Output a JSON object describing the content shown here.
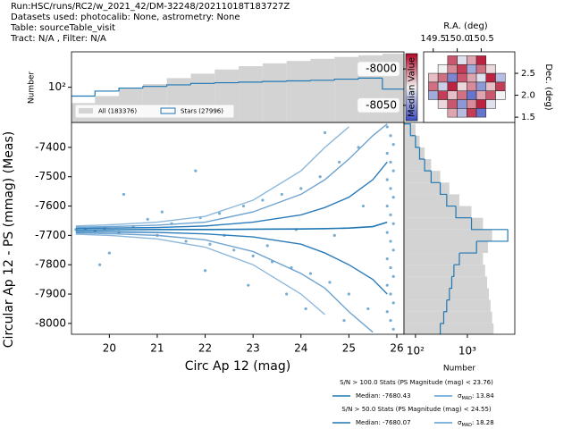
{
  "header": [
    "Run:HSC/runs/RC2/w_2021_42/DM-32248/20211018T183727Z",
    "Datasets used: photocalib: None, astrometry: None",
    "Table: sourceTable_visit",
    "Tract: N/A , Filter: N/A"
  ],
  "chart_data": [
    {
      "type": "scatter",
      "x_label": "Circ Ap 12 (mag)",
      "y_label": "Circular Ap 12 - PS (mmag) (Meas)",
      "xlim": [
        19.21,
        26.15
      ],
      "ylim": [
        -8037,
        -7315
      ],
      "xticks": [
        20,
        21,
        22,
        23,
        24,
        25,
        26
      ],
      "yticks": [
        -8000,
        -7900,
        -7800,
        -7700,
        -7600,
        -7500,
        -7400
      ],
      "points": {
        "color": "#1f77b4",
        "x": [
          19.3,
          19.5,
          19.7,
          19.9,
          20.2,
          20.5,
          20.8,
          21.0,
          21.3,
          21.6,
          21.9,
          22.1,
          22.3,
          22.6,
          22.8,
          23.0,
          23.2,
          23.4,
          23.6,
          23.8,
          24.0,
          24.2,
          24.4,
          24.6,
          24.8,
          25.0,
          25.2,
          25.4,
          20.3,
          21.8,
          22.9,
          23.7,
          24.5,
          24.9,
          22.4,
          23.3,
          20.0,
          21.1,
          19.8,
          23.9,
          24.7,
          22.0,
          25.3,
          24.1,
          25.8,
          25.87,
          25.93,
          25.8,
          25.87,
          25.93,
          25.8,
          25.87,
          25.93,
          25.8,
          25.87,
          25.93,
          25.8,
          25.87,
          25.93,
          25.8,
          25.87,
          25.93,
          25.8,
          25.87,
          25.93,
          25.8,
          25.87,
          25.93
        ],
        "y": [
          -7680,
          -7678,
          -7684,
          -7675,
          -7690,
          -7670,
          -7645,
          -7700,
          -7660,
          -7720,
          -7640,
          -7730,
          -7625,
          -7750,
          -7600,
          -7770,
          -7580,
          -7790,
          -7560,
          -7810,
          -7540,
          -7830,
          -7500,
          -7860,
          -7450,
          -7900,
          -7400,
          -7950,
          -7560,
          -7480,
          -7870,
          -7900,
          -7350,
          -7990,
          -7700,
          -7735,
          -7760,
          -7620,
          -7800,
          -7680,
          -7700,
          -7820,
          -7600,
          -7950,
          -7330,
          -7360,
          -7390,
          -7420,
          -7450,
          -7480,
          -7510,
          -7540,
          -7570,
          -7600,
          -7630,
          -7660,
          -7690,
          -7720,
          -7750,
          -7780,
          -7810,
          -7840,
          -7870,
          -7900,
          -7930,
          -7960,
          -7990,
          -8020
        ]
      },
      "lines": {
        "x": [
          19.3,
          20,
          21,
          22,
          23,
          24,
          24.5,
          25,
          25.5,
          25.8
        ],
        "series": [
          {
            "color": "#1f77b4",
            "values": [
              -7682,
              -7681,
              -7680,
              -7680,
              -7679,
              -7678,
              -7677,
              -7675,
              -7670,
              -7655
            ]
          },
          {
            "color": "#2b7bba",
            "values": [
              -7676,
              -7675,
              -7673,
              -7668,
              -7655,
              -7630,
              -7605,
              -7570,
              -7510,
              -7450
            ]
          },
          {
            "color": "#2b7bba",
            "values": [
              -7688,
              -7688,
              -7690,
              -7695,
              -7705,
              -7730,
              -7760,
              -7800,
              -7850,
              -7900
            ]
          },
          {
            "color": "#6fa3cf",
            "values": [
              -7672,
              -7670,
              -7665,
              -7655,
              -7620,
              -7560,
              -7510,
              -7440,
              -7360,
              -7320
            ]
          },
          {
            "color": "#6fa3cf",
            "values": [
              -7692,
              -7694,
              -7700,
              -7715,
              -7755,
              -7830,
              -7880,
              -7960,
              -8030,
              null
            ]
          },
          {
            "color": "#8cb8dc",
            "values": [
              -7668,
              -7664,
              -7655,
              -7635,
              -7580,
              -7480,
              -7400,
              -7330,
              null,
              null
            ]
          },
          {
            "color": "#8cb8dc",
            "values": [
              -7696,
              -7700,
              -7712,
              -7740,
              -7800,
              -7900,
              -7970,
              null,
              null,
              null
            ]
          }
        ]
      },
      "stats": [
        {
          "title": "S/N > 100.0 Stats (PS Magnitude (mag) < 23.76)",
          "median": {
            "text": "Median: -7680.43",
            "color": "#1f77b4"
          },
          "sigma": {
            "symbol": "σ",
            "sub": "MAD",
            "text": ": 13.84",
            "color": "#5a9bd0"
          }
        },
        {
          "title": "S/N > 50.0 Stats (PS Magnitude (mag) < 24.55)",
          "median": {
            "text": "Median: -7680.07",
            "color": "#1f77b4"
          },
          "sigma": {
            "symbol": "σ",
            "sub": "MAD",
            "text": ": 18.28",
            "color": "#5a9bd0"
          }
        }
      ]
    },
    {
      "type": "histogram",
      "orientation": "vertical",
      "y_label": "Number",
      "log_y": true,
      "ylim": [
        13,
        780
      ],
      "yticks": [
        {
          "value": 100,
          "label": "10²"
        }
      ],
      "bins": [
        19.2,
        19.7,
        20.2,
        20.7,
        21.2,
        21.7,
        22.2,
        22.7,
        23.2,
        23.7,
        24.2,
        24.7,
        25.2,
        25.7,
        26.2
      ],
      "series": [
        {
          "name": "All (183376)",
          "color": "#d3d3d3",
          "style": "filled",
          "values": [
            40,
            60,
            90,
            120,
            170,
            220,
            280,
            340,
            400,
            460,
            520,
            580,
            640,
            700
          ]
        },
        {
          "name": "Stars (27996)",
          "color": "#1f77b4",
          "style": "step",
          "values": [
            60,
            80,
            95,
            105,
            115,
            125,
            130,
            135,
            140,
            145,
            150,
            160,
            170,
            90
          ]
        }
      ]
    },
    {
      "type": "histogram",
      "orientation": "horizontal",
      "x_label": "Number",
      "log_x": true,
      "xlim": [
        60,
        8200
      ],
      "xticks": [
        {
          "value": 100,
          "label": "10²"
        },
        {
          "value": 1000,
          "label": "10³"
        }
      ],
      "bins": [
        -8040,
        -8000,
        -7960,
        -7920,
        -7880,
        -7840,
        -7800,
        -7760,
        -7720,
        -7680,
        -7640,
        -7600,
        -7560,
        -7520,
        -7480,
        -7440,
        -7400,
        -7360,
        -7320
      ],
      "series": [
        {
          "color": "#d3d3d3",
          "style": "filled",
          "values": [
            3200,
            3000,
            2800,
            2600,
            2400,
            2200,
            2000,
            2500,
            3000,
            2000,
            1200,
            700,
            450,
            300,
            200,
            150,
            120,
            100
          ]
        },
        {
          "color": "#1f77b4",
          "style": "step",
          "values": [
            300,
            350,
            400,
            450,
            500,
            550,
            700,
            1500,
            6000,
            1200,
            600,
            400,
            300,
            200,
            150,
            120,
            100,
            80
          ]
        }
      ]
    },
    {
      "type": "heatmap",
      "x_label": "R.A. (deg)",
      "y_label": "Dec. (deg)",
      "xlim": [
        149.3,
        151.2
      ],
      "ylim": [
        1.38,
        2.99
      ],
      "xticks": [
        149.5,
        {
          "value": 150,
          "label": "150.0"
        },
        150.5
      ],
      "yticks": [
        1.5,
        {
          "value": 2,
          "label": "2.0"
        },
        2.5
      ],
      "x_edges": [
        149.4,
        149.6,
        149.8,
        150.0,
        150.2,
        150.4,
        150.6,
        150.8,
        151.0
      ],
      "y_edges": [
        1.5,
        1.7,
        1.9,
        2.1,
        2.3,
        2.5,
        2.7,
        2.9
      ],
      "values": [
        [
          null,
          null,
          -8010,
          -8040,
          -7990,
          -8060,
          null,
          null
        ],
        [
          null,
          -8020,
          -7995,
          -8050,
          -8005,
          -7985,
          -8030,
          null
        ],
        [
          -8045,
          -7990,
          -8015,
          -8000,
          -8060,
          -8010,
          -7995,
          -8025
        ],
        [
          -8000,
          -8035,
          -7985,
          -8020,
          -8005,
          -8050,
          -8015,
          -7990
        ],
        [
          -8015,
          -8000,
          -8055,
          -7995,
          -8010,
          -8030,
          -7985,
          -8040
        ],
        [
          null,
          -8025,
          -8005,
          -7990,
          -8045,
          -8000,
          -8020,
          null
        ],
        [
          null,
          null,
          -7995,
          -8030,
          -8010,
          -7985,
          null,
          null
        ]
      ],
      "colorbar": {
        "label": "Median Value",
        "clim": [
          -8071,
          -7979
        ],
        "ticks": [
          -8000,
          -8050
        ]
      }
    }
  ]
}
